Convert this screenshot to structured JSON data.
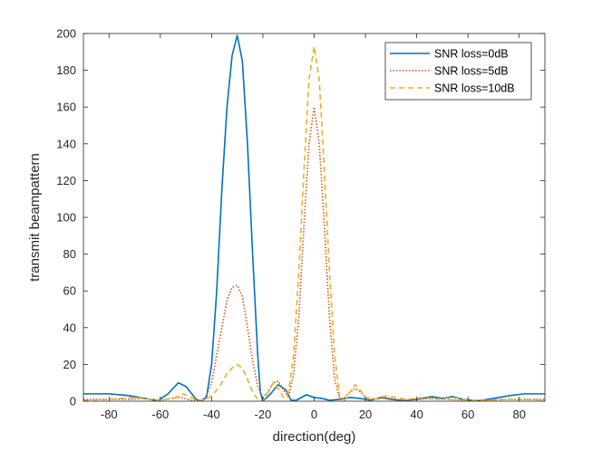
{
  "chart_data": {
    "type": "line",
    "xlabel": "direction(deg)",
    "ylabel": "transmit beampattern",
    "xlim": [
      -90,
      90
    ],
    "ylim": [
      0,
      200
    ],
    "xticks": [
      -80,
      -60,
      -40,
      -20,
      0,
      20,
      40,
      60,
      80
    ],
    "yticks": [
      0,
      20,
      40,
      60,
      80,
      100,
      120,
      140,
      160,
      180,
      200
    ],
    "grid": false,
    "legend_position": "top-right",
    "series": [
      {
        "name": "SNR loss=0dB",
        "color": "#0072BD",
        "dash": "solid",
        "points": [
          [
            -90,
            4
          ],
          [
            -80,
            4
          ],
          [
            -72,
            3
          ],
          [
            -66,
            1.5
          ],
          [
            -61,
            0.2
          ],
          [
            -57,
            4
          ],
          [
            -53,
            10
          ],
          [
            -50,
            8
          ],
          [
            -46,
            1
          ],
          [
            -44,
            0
          ],
          [
            -42,
            2
          ],
          [
            -40,
            20
          ],
          [
            -38,
            60
          ],
          [
            -36,
            115
          ],
          [
            -34,
            160
          ],
          [
            -32,
            188
          ],
          [
            -30,
            199
          ],
          [
            -28,
            185
          ],
          [
            -26,
            140
          ],
          [
            -24,
            80
          ],
          [
            -22,
            25
          ],
          [
            -21,
            5
          ],
          [
            -20,
            0
          ],
          [
            -17,
            4
          ],
          [
            -14,
            9
          ],
          [
            -11,
            6
          ],
          [
            -9,
            0.5
          ],
          [
            -7,
            0.5
          ],
          [
            -3,
            3.5
          ],
          [
            0,
            2
          ],
          [
            3,
            1.5
          ],
          [
            6,
            0.5
          ],
          [
            10,
            1
          ],
          [
            14,
            2
          ],
          [
            18,
            1.5
          ],
          [
            22,
            0.5
          ],
          [
            26,
            2
          ],
          [
            30,
            1
          ],
          [
            35,
            0.3
          ],
          [
            40,
            1
          ],
          [
            46,
            2.5
          ],
          [
            50,
            1.5
          ],
          [
            54,
            2.5
          ],
          [
            58,
            1
          ],
          [
            64,
            0.2
          ],
          [
            70,
            1.5
          ],
          [
            76,
            3
          ],
          [
            82,
            4
          ],
          [
            86,
            4
          ],
          [
            90,
            4
          ]
        ]
      },
      {
        "name": "SNR loss=5dB",
        "color": "#D95319",
        "dash": "dotted",
        "points": [
          [
            -90,
            1
          ],
          [
            -80,
            1
          ],
          [
            -72,
            1
          ],
          [
            -66,
            1.5
          ],
          [
            -60,
            0.5
          ],
          [
            -56,
            1.5
          ],
          [
            -52,
            2
          ],
          [
            -48,
            0.5
          ],
          [
            -44,
            0.5
          ],
          [
            -42,
            3
          ],
          [
            -40,
            10
          ],
          [
            -38,
            25
          ],
          [
            -36,
            40
          ],
          [
            -34,
            55
          ],
          [
            -32,
            62
          ],
          [
            -30,
            63
          ],
          [
            -28,
            57
          ],
          [
            -26,
            40
          ],
          [
            -24,
            22
          ],
          [
            -22,
            8
          ],
          [
            -20,
            2
          ],
          [
            -18,
            5
          ],
          [
            -16,
            10
          ],
          [
            -14,
            11
          ],
          [
            -12,
            6
          ],
          [
            -10,
            2
          ],
          [
            -8,
            15
          ],
          [
            -6,
            45
          ],
          [
            -4,
            95
          ],
          [
            -2,
            140
          ],
          [
            0,
            160
          ],
          [
            2,
            140
          ],
          [
            4,
            95
          ],
          [
            6,
            45
          ],
          [
            8,
            12
          ],
          [
            10,
            1
          ],
          [
            12,
            2
          ],
          [
            14,
            5
          ],
          [
            16,
            7
          ],
          [
            18,
            5
          ],
          [
            20,
            2
          ],
          [
            24,
            1
          ],
          [
            28,
            2
          ],
          [
            32,
            1
          ],
          [
            36,
            0.5
          ],
          [
            40,
            1
          ],
          [
            46,
            1.5
          ],
          [
            52,
            1
          ],
          [
            58,
            0.5
          ],
          [
            66,
            0.5
          ],
          [
            74,
            1
          ],
          [
            82,
            1
          ],
          [
            90,
            1
          ]
        ]
      },
      {
        "name": "SNR loss=10dB",
        "color": "#EDB120",
        "dash": "dashed",
        "points": [
          [
            -90,
            0.5
          ],
          [
            -80,
            1
          ],
          [
            -72,
            2
          ],
          [
            -66,
            1.5
          ],
          [
            -62,
            0.5
          ],
          [
            -58,
            1
          ],
          [
            -55,
            1.5
          ],
          [
            -51,
            4
          ],
          [
            -48,
            2
          ],
          [
            -45,
            0.5
          ],
          [
            -42,
            1
          ],
          [
            -40,
            3
          ],
          [
            -38,
            6
          ],
          [
            -36,
            10
          ],
          [
            -34,
            15
          ],
          [
            -32,
            18
          ],
          [
            -30,
            20
          ],
          [
            -28,
            18
          ],
          [
            -26,
            12
          ],
          [
            -24,
            5
          ],
          [
            -22,
            1
          ],
          [
            -20,
            0
          ],
          [
            -18,
            5
          ],
          [
            -16,
            10
          ],
          [
            -14,
            7
          ],
          [
            -12,
            2
          ],
          [
            -10,
            5
          ],
          [
            -8,
            25
          ],
          [
            -6,
            70
          ],
          [
            -4,
            125
          ],
          [
            -2,
            175
          ],
          [
            0,
            193
          ],
          [
            2,
            175
          ],
          [
            4,
            125
          ],
          [
            6,
            70
          ],
          [
            8,
            25
          ],
          [
            10,
            2
          ],
          [
            12,
            0.5
          ],
          [
            14,
            5
          ],
          [
            16,
            9
          ],
          [
            18,
            6
          ],
          [
            20,
            2
          ],
          [
            24,
            1
          ],
          [
            28,
            3
          ],
          [
            32,
            2
          ],
          [
            36,
            1
          ],
          [
            42,
            2
          ],
          [
            48,
            1
          ],
          [
            54,
            2
          ],
          [
            60,
            0.5
          ],
          [
            68,
            0.5
          ],
          [
            76,
            1
          ],
          [
            84,
            1
          ],
          [
            90,
            0.5
          ]
        ]
      }
    ]
  }
}
